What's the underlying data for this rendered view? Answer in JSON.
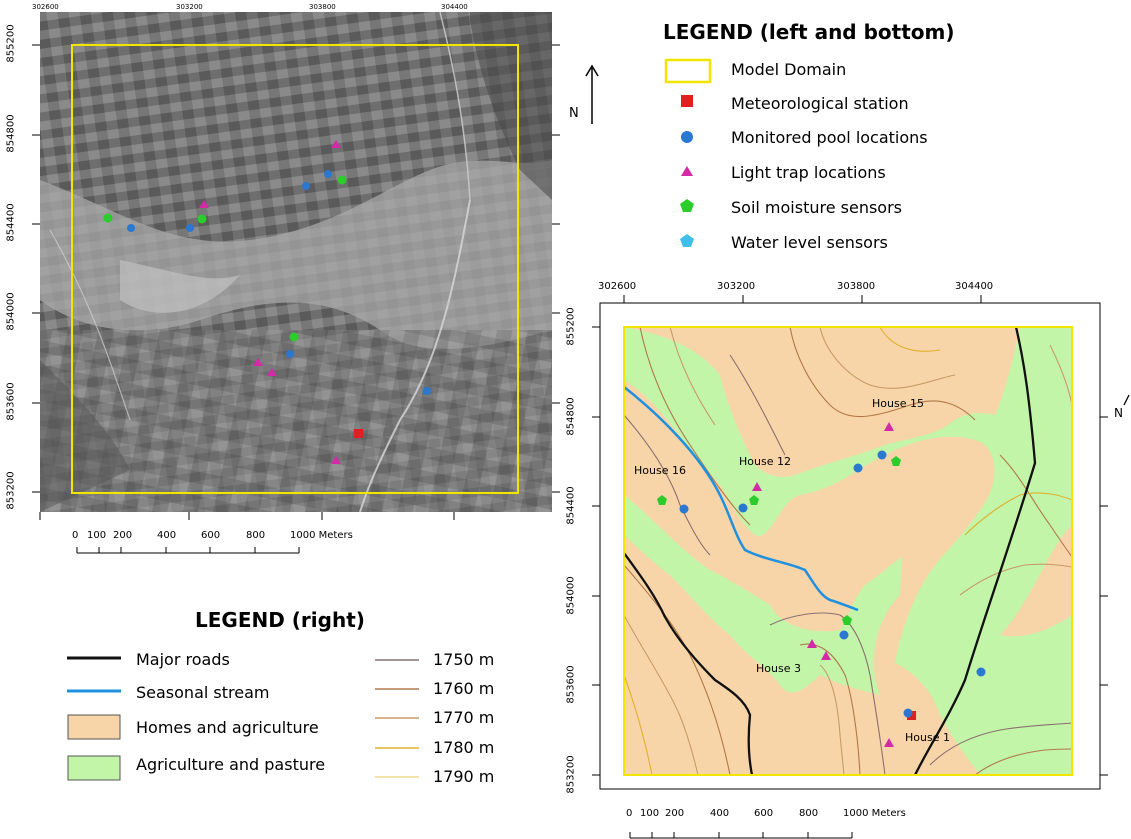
{
  "top_legend": {
    "title": "LEGEND (left and bottom)",
    "north": "N",
    "items": [
      {
        "label": "Model Domain",
        "icon": "yellow-rectangle"
      },
      {
        "label": "Meteorological station",
        "icon": "red-square"
      },
      {
        "label": "Monitored pool locations",
        "icon": "blue-circle"
      },
      {
        "label": "Light trap locations",
        "icon": "magenta-triangle"
      },
      {
        "label": "Soil moisture sensors",
        "icon": "green-pentagon"
      },
      {
        "label": "Water level sensors",
        "icon": "cyan-pentagon"
      }
    ]
  },
  "left_map": {
    "x_ticks": [
      "302600",
      "303200",
      "303800",
      "304400"
    ],
    "y_ticks": [
      "855200",
      "854800",
      "854400",
      "854000",
      "853600",
      "853200"
    ],
    "scale_labels": [
      "0",
      "100",
      "200",
      "400",
      "600",
      "800",
      "1000 Meters"
    ]
  },
  "right_legend": {
    "title": "LEGEND (right)",
    "items": [
      {
        "label": "Major roads",
        "icon": "black-line"
      },
      {
        "label": "Seasonal stream",
        "icon": "blue-line"
      },
      {
        "label": "Homes and agriculture",
        "icon": "tan-box"
      },
      {
        "label": "Agriculture and pasture",
        "icon": "green-box"
      }
    ],
    "contours": [
      "1750 m",
      "1760 m",
      "1770 m",
      "1780 m",
      "1790 m"
    ]
  },
  "right_map": {
    "x_ticks": [
      "302600",
      "303200",
      "303800",
      "304400"
    ],
    "y_ticks": [
      "855200",
      "854800",
      "854400",
      "854000",
      "853600",
      "853200"
    ],
    "scale_labels": [
      "0",
      "100",
      "200",
      "400",
      "600",
      "800",
      "1000 Meters"
    ],
    "north": "N",
    "houses": [
      "House 15",
      "House 12",
      "House 16",
      "House 3",
      "House 1"
    ]
  },
  "colors": {
    "model_domain": "#f2e600",
    "met_station": "#e02020",
    "pool": "#2a78d0",
    "light_trap": "#d42aa8",
    "soil": "#2ccc2c",
    "water_level": "#40c0e8",
    "homes": "#f8d5a8",
    "pasture": "#c3f5a8",
    "road": "#111111",
    "stream": "#2090e0"
  }
}
